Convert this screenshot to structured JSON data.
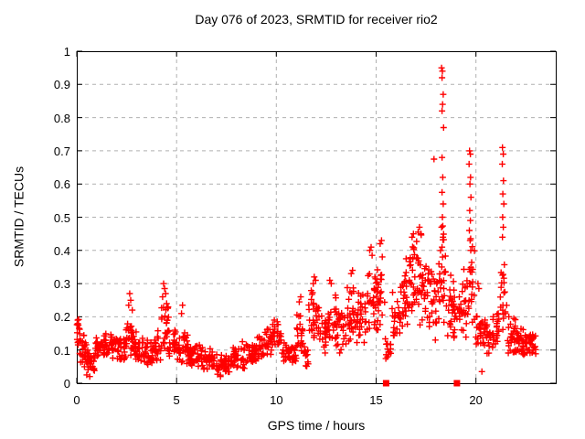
{
  "chart_data": {
    "type": "scatter",
    "title": "Day 076 of 2023, SRMTID for receiver rio2",
    "xlabel": "GPS time / hours",
    "ylabel": "SRMTID / TECUs",
    "xlim": [
      0,
      24
    ],
    "ylim": [
      0,
      1
    ],
    "grid": true,
    "legend": "none",
    "marker": "plus-cross",
    "marker_color": "#ff0000",
    "grid_color": "#b0b0b0",
    "border_color": "#000000",
    "xticks": [
      [
        0,
        "0"
      ],
      [
        5,
        "5"
      ],
      [
        10,
        "10"
      ],
      [
        15,
        "15"
      ],
      [
        20,
        "20"
      ]
    ],
    "yticks": [
      [
        0,
        "0"
      ],
      [
        0.1,
        "0.1"
      ],
      [
        0.2,
        "0.2"
      ],
      [
        0.3,
        "0.3"
      ],
      [
        0.4,
        "0.4"
      ],
      [
        0.5,
        "0.5"
      ],
      [
        0.6,
        "0.6"
      ],
      [
        0.7,
        "0.7"
      ],
      [
        0.8,
        "0.8"
      ],
      [
        0.9,
        "0.9"
      ],
      [
        1,
        "1"
      ]
    ],
    "axis_markers": {
      "marker": "filled-square",
      "color": "#ff0000",
      "value": 0,
      "hours": [
        15.5,
        19.05
      ]
    },
    "seed": 1234,
    "density_bands": [
      [
        0.0,
        0.15,
        0.08,
        0.2,
        12
      ],
      [
        0.1,
        0.5,
        0.04,
        0.15,
        22
      ],
      [
        0.5,
        0.9,
        0.02,
        0.11,
        26
      ],
      [
        0.9,
        1.4,
        0.06,
        0.15,
        30
      ],
      [
        1.4,
        1.9,
        0.07,
        0.17,
        30
      ],
      [
        1.9,
        2.4,
        0.06,
        0.15,
        30
      ],
      [
        2.4,
        2.9,
        0.07,
        0.2,
        30
      ],
      [
        2.9,
        3.4,
        0.06,
        0.16,
        30
      ],
      [
        3.4,
        3.9,
        0.05,
        0.14,
        30
      ],
      [
        3.9,
        4.25,
        0.06,
        0.16,
        20
      ],
      [
        4.25,
        4.6,
        0.08,
        0.25,
        24
      ],
      [
        4.6,
        5.0,
        0.06,
        0.17,
        24
      ],
      [
        5.0,
        5.6,
        0.05,
        0.17,
        34
      ],
      [
        5.6,
        6.2,
        0.04,
        0.13,
        34
      ],
      [
        6.2,
        6.9,
        0.03,
        0.11,
        38
      ],
      [
        6.9,
        7.8,
        0.02,
        0.09,
        46
      ],
      [
        7.8,
        8.4,
        0.04,
        0.12,
        32
      ],
      [
        8.4,
        9.0,
        0.05,
        0.13,
        32
      ],
      [
        9.0,
        9.4,
        0.06,
        0.15,
        20
      ],
      [
        9.4,
        9.8,
        0.08,
        0.18,
        22
      ],
      [
        9.8,
        10.25,
        0.09,
        0.19,
        24
      ],
      [
        10.25,
        10.65,
        0.06,
        0.13,
        22
      ],
      [
        10.65,
        11.0,
        0.05,
        0.12,
        18
      ],
      [
        11.0,
        11.35,
        0.08,
        0.24,
        20
      ],
      [
        11.35,
        11.6,
        0.04,
        0.13,
        14
      ],
      [
        11.6,
        12.2,
        0.1,
        0.29,
        34
      ],
      [
        12.2,
        12.6,
        0.08,
        0.22,
        22
      ],
      [
        12.6,
        13.0,
        0.1,
        0.28,
        22
      ],
      [
        13.0,
        13.5,
        0.08,
        0.25,
        28
      ],
      [
        13.5,
        14.0,
        0.1,
        0.31,
        28
      ],
      [
        14.0,
        14.5,
        0.1,
        0.28,
        28
      ],
      [
        14.5,
        15.0,
        0.12,
        0.37,
        28
      ],
      [
        15.0,
        15.45,
        0.12,
        0.41,
        26
      ],
      [
        15.45,
        15.8,
        0.05,
        0.16,
        14
      ],
      [
        15.8,
        16.2,
        0.1,
        0.31,
        22
      ],
      [
        16.2,
        16.6,
        0.14,
        0.37,
        24
      ],
      [
        16.6,
        17.0,
        0.15,
        0.44,
        24
      ],
      [
        17.0,
        17.4,
        0.15,
        0.46,
        24
      ],
      [
        17.4,
        17.8,
        0.12,
        0.41,
        24
      ],
      [
        17.8,
        18.1,
        0.12,
        0.36,
        16
      ],
      [
        18.1,
        18.5,
        0.14,
        0.5,
        26
      ],
      [
        18.5,
        18.9,
        0.1,
        0.36,
        22
      ],
      [
        18.9,
        19.3,
        0.1,
        0.31,
        22
      ],
      [
        19.3,
        19.6,
        0.12,
        0.36,
        18
      ],
      [
        19.6,
        19.95,
        0.14,
        0.48,
        22
      ],
      [
        19.95,
        20.35,
        0.08,
        0.25,
        22
      ],
      [
        20.35,
        20.8,
        0.08,
        0.21,
        26
      ],
      [
        20.8,
        21.2,
        0.09,
        0.23,
        22
      ],
      [
        21.2,
        21.55,
        0.1,
        0.4,
        20
      ],
      [
        21.55,
        22.0,
        0.08,
        0.21,
        26
      ],
      [
        22.0,
        22.5,
        0.07,
        0.18,
        30
      ],
      [
        22.5,
        23.0,
        0.07,
        0.16,
        32
      ]
    ],
    "highlight_points": [
      [
        0.05,
        0.19
      ],
      [
        0.08,
        0.175
      ],
      [
        0.12,
        0.165
      ],
      [
        0.5,
        0.025
      ],
      [
        0.65,
        0.02
      ],
      [
        2.6,
        0.235
      ],
      [
        2.65,
        0.27
      ],
      [
        2.7,
        0.25
      ],
      [
        2.78,
        0.22
      ],
      [
        4.3,
        0.26
      ],
      [
        4.35,
        0.3
      ],
      [
        4.4,
        0.285
      ],
      [
        4.45,
        0.27
      ],
      [
        4.5,
        0.24
      ],
      [
        5.25,
        0.21
      ],
      [
        5.3,
        0.235
      ],
      [
        7.2,
        0.02
      ],
      [
        8.3,
        0.125
      ],
      [
        9.9,
        0.19
      ],
      [
        10.05,
        0.185
      ],
      [
        11.15,
        0.245
      ],
      [
        11.22,
        0.26
      ],
      [
        11.85,
        0.3
      ],
      [
        11.9,
        0.32
      ],
      [
        11.97,
        0.31
      ],
      [
        12.68,
        0.31
      ],
      [
        12.75,
        0.3
      ],
      [
        13.75,
        0.33
      ],
      [
        13.82,
        0.34
      ],
      [
        14.68,
        0.4
      ],
      [
        14.75,
        0.41
      ],
      [
        14.8,
        0.385
      ],
      [
        15.2,
        0.42
      ],
      [
        15.27,
        0.43
      ],
      [
        16.5,
        0.375
      ],
      [
        16.8,
        0.44
      ],
      [
        16.87,
        0.45
      ],
      [
        17.1,
        0.455
      ],
      [
        17.17,
        0.47
      ],
      [
        17.25,
        0.45
      ],
      [
        17.9,
        0.675
      ],
      [
        18.28,
        0.95
      ],
      [
        18.32,
        0.94
      ],
      [
        18.3,
        0.92
      ],
      [
        18.36,
        0.87
      ],
      [
        18.33,
        0.84
      ],
      [
        18.3,
        0.82
      ],
      [
        18.38,
        0.77
      ],
      [
        18.3,
        0.68
      ],
      [
        18.34,
        0.62
      ],
      [
        18.3,
        0.575
      ],
      [
        18.36,
        0.54
      ],
      [
        18.32,
        0.5
      ],
      [
        18.28,
        0.47
      ],
      [
        18.35,
        0.44
      ],
      [
        18.3,
        0.41
      ],
      [
        18.33,
        0.38
      ],
      [
        18.29,
        0.35
      ],
      [
        19.68,
        0.7
      ],
      [
        19.72,
        0.69
      ],
      [
        19.66,
        0.66
      ],
      [
        19.73,
        0.62
      ],
      [
        19.7,
        0.6
      ],
      [
        19.75,
        0.56
      ],
      [
        19.69,
        0.52
      ],
      [
        19.72,
        0.49
      ],
      [
        19.67,
        0.46
      ],
      [
        19.71,
        0.43
      ],
      [
        19.74,
        0.4
      ],
      [
        20.1,
        0.3
      ],
      [
        20.15,
        0.285
      ],
      [
        20.3,
        0.035
      ],
      [
        21.33,
        0.71
      ],
      [
        21.37,
        0.69
      ],
      [
        21.32,
        0.66
      ],
      [
        21.38,
        0.61
      ],
      [
        21.35,
        0.57
      ],
      [
        21.4,
        0.54
      ],
      [
        21.34,
        0.5
      ],
      [
        21.37,
        0.47
      ],
      [
        21.33,
        0.44
      ],
      [
        21.9,
        0.195
      ]
    ]
  }
}
